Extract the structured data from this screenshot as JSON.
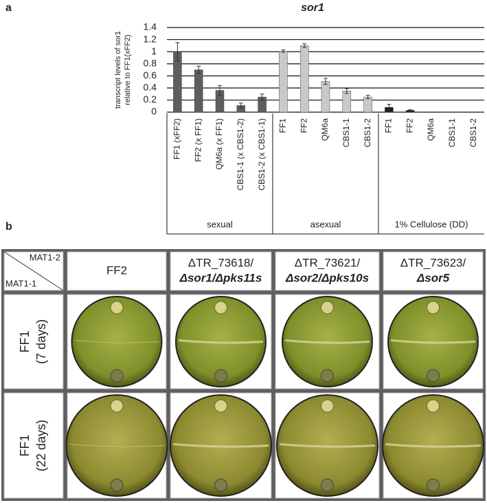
{
  "chart_data": {
    "type": "bar",
    "panel": "a",
    "title": "sor1",
    "ylabel": [
      "transcript levels of sor1",
      "relative to FF1(xFF2)"
    ],
    "ylim": [
      0,
      1.4
    ],
    "yticks": [
      0,
      0.2,
      0.4,
      0.6,
      0.8,
      1,
      1.2,
      1.4
    ],
    "grid": true,
    "series": [
      {
        "name": "sexual",
        "color": "#5e5e5e",
        "categories": [
          "FF1 (xFF2)",
          "FF2 (x FF1)",
          "QM6a (x FF1)",
          "CBS1-1 (x CBS1-2)",
          "CBS1-2 (x CBS1-1)"
        ],
        "values": [
          1.0,
          0.7,
          0.36,
          0.11,
          0.25
        ],
        "errors": [
          0.15,
          0.06,
          0.08,
          0.04,
          0.05
        ]
      },
      {
        "name": "asexual",
        "color": "#c9c9c9",
        "categories": [
          "FF1",
          "FF2",
          "QM6a",
          "CBS1-1",
          "CBS1-2"
        ],
        "values": [
          1.01,
          1.1,
          0.51,
          0.35,
          0.25
        ],
        "errors": [
          0.02,
          0.03,
          0.05,
          0.04,
          0.03
        ]
      },
      {
        "name": "1% Cellulose (DD)",
        "color": "#1c1c1c",
        "categories": [
          "FF1",
          "FF2",
          "QM6a",
          "CBS1-1",
          "CBS1-2"
        ],
        "values": [
          0.08,
          0.03,
          0,
          0,
          0
        ],
        "errors": [
          0.05,
          0.01,
          0,
          0,
          0
        ]
      }
    ]
  },
  "panel_b": {
    "label": "b",
    "corner": [
      "MAT1-2",
      "MAT1-1"
    ],
    "columns": [
      [
        "FF2"
      ],
      [
        "ΔTR_73618/",
        "Δsor1/Δpks11s"
      ],
      [
        "ΔTR_73621/",
        "Δsor2/Δpks10s"
      ],
      [
        "ΔTR_73623/",
        "Δsor5"
      ]
    ],
    "rows": [
      [
        "FF1",
        "(7 days)"
      ],
      [
        "FF1",
        "(22 days)"
      ]
    ]
  }
}
